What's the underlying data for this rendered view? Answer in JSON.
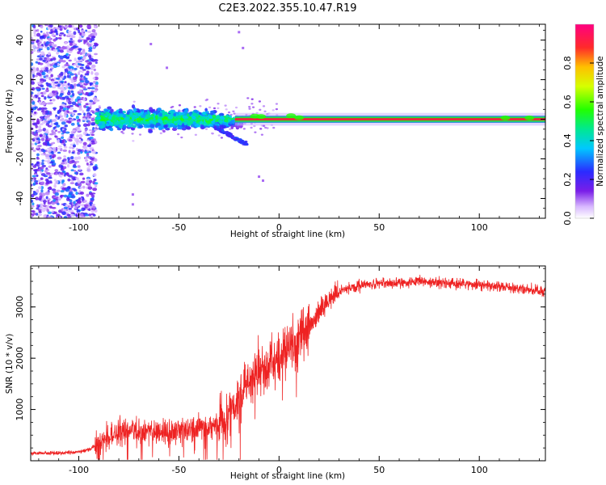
{
  "title": "C2E3.2022.355.10.47.R19",
  "colors": {
    "snr_line": "#ee2222",
    "ridge_core": "#e8283c",
    "scatter_purple": "#7a1ee8",
    "frame": "#000000"
  },
  "chart_data": [
    {
      "type": "heatmap",
      "xlabel": "Height of straight line (km)",
      "ylabel": "Frequency (Hz)",
      "xlim": [
        -124,
        133
      ],
      "ylim": [
        -50,
        48
      ],
      "x_ticks": [
        -100,
        -50,
        0,
        50,
        100
      ],
      "y_ticks": [
        -40,
        -20,
        0,
        20,
        40
      ],
      "grid": false,
      "description_of_signal": [
        {
          "region": "noise",
          "x": [
            -124,
            -91
          ],
          "y": [
            -50,
            48
          ],
          "amplitude": [
            0.05,
            0.3
          ]
        },
        {
          "region": "scattered_band",
          "x": [
            -91,
            -20
          ],
          "y_center": 0,
          "y_halfwidth_max": 10,
          "amplitude": [
            0.3,
            0.6
          ]
        },
        {
          "region": "steady_line",
          "x": [
            -20,
            133
          ],
          "y_center": 0,
          "amplitude": [
            0.8,
            1.0
          ]
        }
      ],
      "colorbar": {
        "label": "Normalized spectral amplitude",
        "ticks": [
          0.0,
          0.2,
          0.4,
          0.6,
          0.8
        ],
        "range": [
          0,
          1
        ],
        "colormap": "rainbow"
      }
    },
    {
      "type": "line",
      "xlabel": "Height of straight line (km)",
      "ylabel": "SNR (10 * v/v)",
      "xlim": [
        -124,
        133
      ],
      "ylim": [
        0,
        3800
      ],
      "x_ticks": [
        -100,
        -50,
        0,
        50,
        100
      ],
      "y_ticks": [
        1000,
        2000,
        3000
      ],
      "grid": false,
      "series": [
        {
          "x": [
            -124,
            -110,
            -100,
            -95,
            -90,
            -85,
            -80,
            -75,
            -70,
            -60,
            -50,
            -40,
            -30,
            -25,
            -20,
            -15,
            -10,
            -5,
            0,
            5,
            10,
            15,
            20,
            25,
            30,
            35,
            40,
            45,
            50,
            60,
            70,
            80,
            90,
            100,
            110,
            120,
            133
          ],
          "y": [
            150,
            150,
            170,
            220,
            330,
            450,
            550,
            600,
            560,
            570,
            560,
            650,
            700,
            900,
            1250,
            1600,
            1800,
            1900,
            2050,
            2200,
            2400,
            2600,
            2900,
            3150,
            3300,
            3380,
            3420,
            3440,
            3450,
            3480,
            3490,
            3470,
            3450,
            3430,
            3400,
            3350,
            3300
          ]
        }
      ]
    }
  ]
}
